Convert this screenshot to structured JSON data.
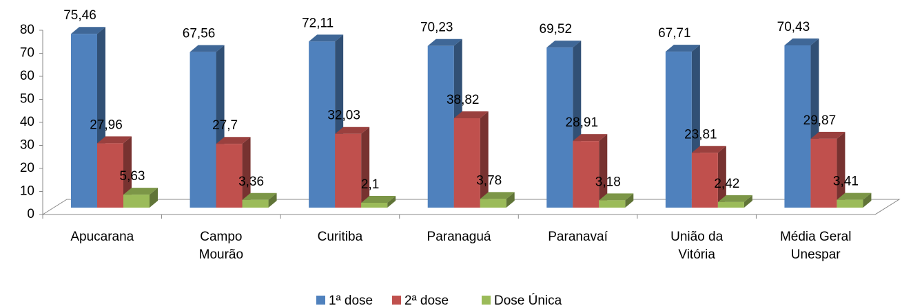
{
  "chart_data": {
    "type": "bar3d",
    "categories": [
      "Apucarana",
      "Campo\nMourão",
      "Curitiba",
      "Paranaguá",
      "Paranavaí",
      "União da\nVitória",
      "Média Geral\nUnespar"
    ],
    "series": [
      {
        "name": "1ª dose",
        "color": "#4f81bd",
        "values": [
          75.46,
          67.56,
          72.11,
          70.23,
          69.52,
          67.71,
          70.43
        ],
        "value_labels": [
          "75,46",
          "67,56",
          "72,11",
          "70,23",
          "69,52",
          "67,71",
          "70,43"
        ]
      },
      {
        "name": "2ª dose",
        "color": "#c0504d",
        "values": [
          27.96,
          27.7,
          32.03,
          38.82,
          28.91,
          23.81,
          29.87
        ],
        "value_labels": [
          "27,96",
          "27,7",
          "32,03",
          "38,82",
          "28,91",
          "23,81",
          "29,87"
        ]
      },
      {
        "name": "Dose Única",
        "color": "#9bbb59",
        "values": [
          5.63,
          3.36,
          2.1,
          3.78,
          3.18,
          2.42,
          3.41
        ],
        "value_labels": [
          "5,63",
          "3,36",
          "2,1",
          "3,78",
          "3,18",
          "2,42",
          "3,41"
        ]
      }
    ],
    "ylim": [
      0,
      80
    ],
    "yticks": [
      0,
      10,
      20,
      30,
      40,
      50,
      60,
      70,
      80
    ],
    "legend": "bottom"
  }
}
